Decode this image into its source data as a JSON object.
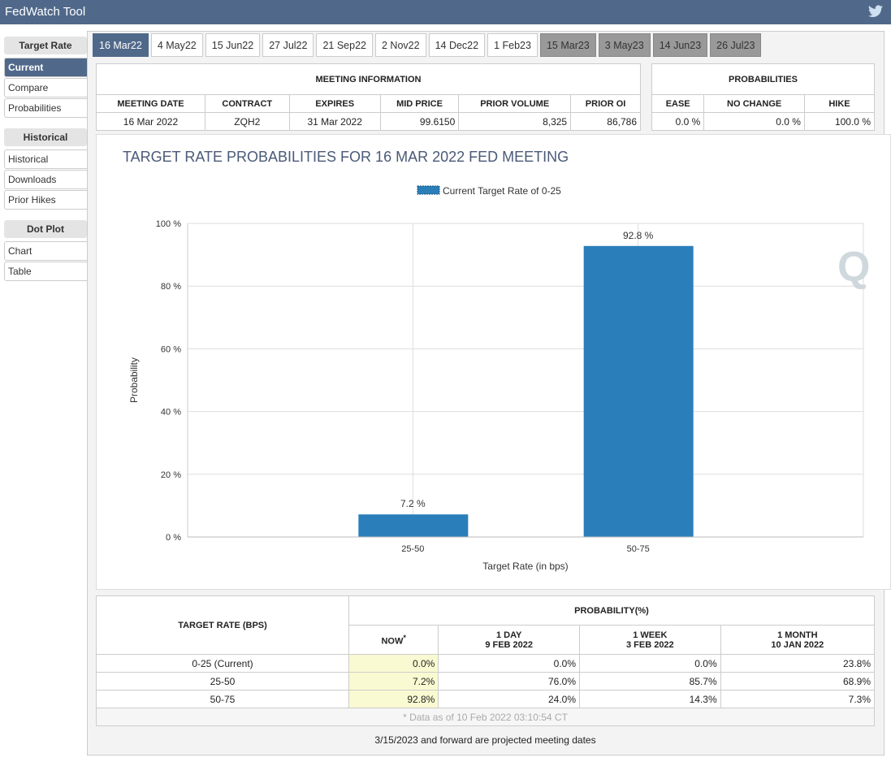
{
  "app": {
    "title": "FedWatch Tool",
    "share_icon": "twitter-icon"
  },
  "sidebar": {
    "sections": [
      {
        "header": "Target Rate",
        "items": [
          "Current",
          "Compare",
          "Probabilities"
        ]
      },
      {
        "header": "Historical",
        "items": [
          "Historical",
          "Downloads",
          "Prior Hikes"
        ]
      },
      {
        "header": "Dot Plot",
        "items": [
          "Chart",
          "Table"
        ]
      }
    ],
    "active": "Current"
  },
  "tabs": [
    {
      "label": "16 Mar22",
      "state": "active"
    },
    {
      "label": "4 May22"
    },
    {
      "label": "15 Jun22"
    },
    {
      "label": "27 Jul22"
    },
    {
      "label": "21 Sep22"
    },
    {
      "label": "2 Nov22"
    },
    {
      "label": "14 Dec22"
    },
    {
      "label": "1 Feb23"
    },
    {
      "label": "15 Mar23",
      "state": "projected"
    },
    {
      "label": "3 May23",
      "state": "projected"
    },
    {
      "label": "14 Jun23",
      "state": "projected"
    },
    {
      "label": "26 Jul23",
      "state": "projected"
    }
  ],
  "meeting_info": {
    "title": "MEETING INFORMATION",
    "headers": [
      "MEETING DATE",
      "CONTRACT",
      "EXPIRES",
      "MID PRICE",
      "PRIOR VOLUME",
      "PRIOR OI"
    ],
    "values": [
      "16 Mar 2022",
      "ZQH2",
      "31 Mar 2022",
      "99.6150",
      "8,325",
      "86,786"
    ]
  },
  "probabilities": {
    "title": "PROBABILITIES",
    "headers": [
      "EASE",
      "NO CHANGE",
      "HIKE"
    ],
    "values": [
      "0.0 %",
      "0.0 %",
      "100.0 %"
    ]
  },
  "chart_data": {
    "type": "bar",
    "title": "TARGET RATE PROBABILITIES FOR 16 MAR 2022 FED MEETING",
    "legend": "Current Target Rate of 0-25",
    "legend_placement": "top",
    "categories": [
      "25-50",
      "50-75"
    ],
    "values": [
      7.2,
      92.8
    ],
    "data_labels": [
      "7.2 %",
      "92.8 %"
    ],
    "xlabel": "Target Rate (in bps)",
    "ylabel": "Probability",
    "ylim": [
      0,
      100
    ],
    "yticks": [
      "0 %",
      "20 %",
      "40 %",
      "60 %",
      "80 %",
      "100 %"
    ],
    "grid": true,
    "bar_color": "#2a7fba"
  },
  "prob_table": {
    "col1": "TARGET RATE (BPS)",
    "group": "PROBABILITY(%)",
    "cols": [
      [
        "NOW",
        "*"
      ],
      [
        "1 DAY",
        "9 FEB 2022"
      ],
      [
        "1 WEEK",
        "3 FEB 2022"
      ],
      [
        "1 MONTH",
        "10 JAN 2022"
      ]
    ],
    "rows": [
      [
        "0-25 (Current)",
        "0.0%",
        "0.0%",
        "0.0%",
        "23.8%"
      ],
      [
        "25-50",
        "7.2%",
        "76.0%",
        "85.7%",
        "68.9%"
      ],
      [
        "50-75",
        "92.8%",
        "24.0%",
        "14.3%",
        "7.3%"
      ]
    ],
    "footnote": "* Data as of 10 Feb 2022 03:10:54 CT"
  },
  "note": "3/15/2023 and forward are projected meeting dates"
}
